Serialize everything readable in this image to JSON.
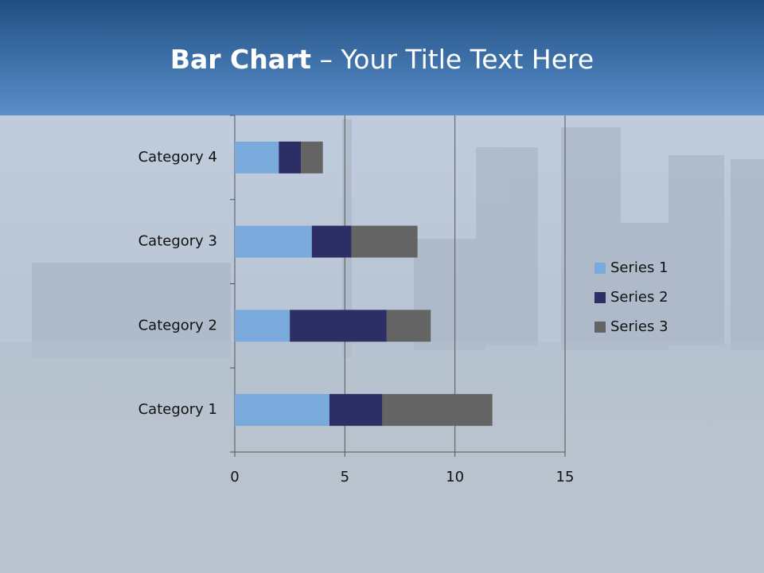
{
  "chart_data": {
    "type": "stacked-barh",
    "title": {
      "bold": "Bar Chart",
      "rest": " – Your Title Text Here"
    },
    "categories": [
      "Category 1",
      "Category 2",
      "Category 3",
      "Category 4"
    ],
    "series": [
      {
        "name": "Series 1",
        "color": "#7aaadc",
        "values": [
          4.3,
          2.5,
          3.5,
          2
        ]
      },
      {
        "name": "Series 2",
        "color": "#2e2e66",
        "values": [
          2.4,
          4.4,
          1.8,
          1
        ]
      },
      {
        "name": "Series 3",
        "color": "#646464",
        "values": [
          5,
          2,
          3,
          1
        ]
      }
    ],
    "xlim": [
      0,
      15
    ],
    "xticks": [
      0,
      5,
      10,
      15
    ],
    "grid": true,
    "legend": "right"
  }
}
